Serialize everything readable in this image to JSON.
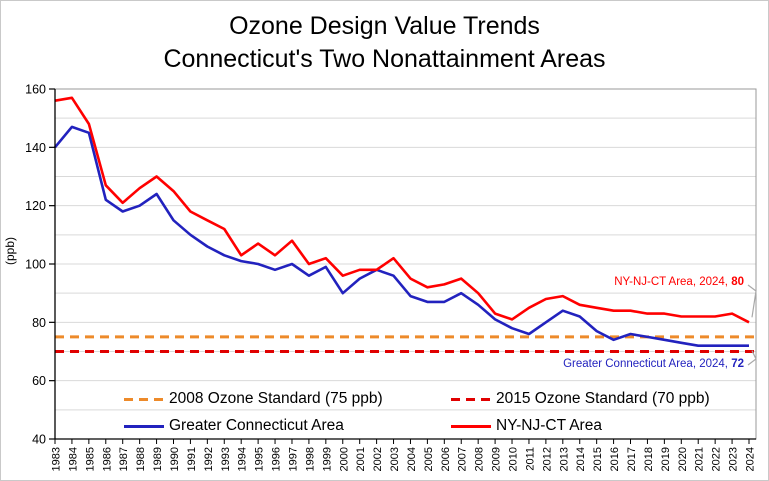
{
  "figure": {
    "title_line1": "Ozone Design Value Trends",
    "title_line2": "Connecticut's Two Nonattainment Areas",
    "ylabel": "(ppb)"
  },
  "chart_data": {
    "type": "line",
    "x_label": "year",
    "x": [
      1983,
      1984,
      1985,
      1986,
      1987,
      1988,
      1989,
      1990,
      1991,
      1992,
      1993,
      1994,
      1995,
      1996,
      1997,
      1998,
      1999,
      2000,
      2001,
      2002,
      2003,
      2004,
      2005,
      2006,
      2007,
      2008,
      2009,
      2010,
      2011,
      2012,
      2013,
      2014,
      2015,
      2016,
      2017,
      2018,
      2019,
      2020,
      2021,
      2022,
      2023,
      2024
    ],
    "series": [
      {
        "name": "Greater Connecticut Area",
        "color": "#2222be",
        "values": [
          140,
          147,
          145,
          122,
          118,
          120,
          124,
          115,
          110,
          106,
          103,
          101,
          100,
          98,
          100,
          96,
          99,
          90,
          95,
          98,
          96,
          89,
          87,
          87,
          90,
          86,
          81,
          78,
          76,
          80,
          84,
          82,
          77,
          74,
          76,
          75,
          74,
          73,
          72,
          72,
          72,
          72
        ]
      },
      {
        "name": "NY-NJ-CT Area",
        "color": "#ff0000",
        "values": [
          156,
          157,
          148,
          127,
          121,
          126,
          130,
          125,
          118,
          115,
          112,
          103,
          107,
          103,
          108,
          100,
          102,
          96,
          98,
          98,
          102,
          95,
          92,
          93,
          95,
          90,
          83,
          81,
          85,
          88,
          89,
          86,
          85,
          84,
          84,
          83,
          83,
          82,
          82,
          82,
          83,
          80
        ]
      }
    ],
    "reference_lines": [
      {
        "name": "2008 Ozone Standard (75 ppb)",
        "value": 75,
        "color": "#ed8a2a",
        "style": "dashed"
      },
      {
        "name": "2015 Ozone Standard (70 ppb)",
        "value": 70,
        "color": "#e00000",
        "style": "dashed"
      }
    ],
    "ylim": [
      40,
      160
    ],
    "y_ticks": [
      160,
      140,
      120,
      100,
      80,
      60,
      40
    ],
    "grid": "horizontal every 10 ppb",
    "legend_position": "inside-bottom, two columns",
    "annotations": [
      {
        "text": "NY-NJ-CT Area, 2024, ",
        "bold_value": "80",
        "color": "#ff0000",
        "points_to": "last red point"
      },
      {
        "text": "Greater Connecticut Area, 2024, ",
        "bold_value": "72",
        "color": "#2222be",
        "points_to": "last blue point"
      }
    ],
    "colors": {
      "gridline": "#d9d9d9",
      "frame": "#9a9a9a",
      "axis": "#000000",
      "leader_line": "#a8a8a8"
    }
  }
}
